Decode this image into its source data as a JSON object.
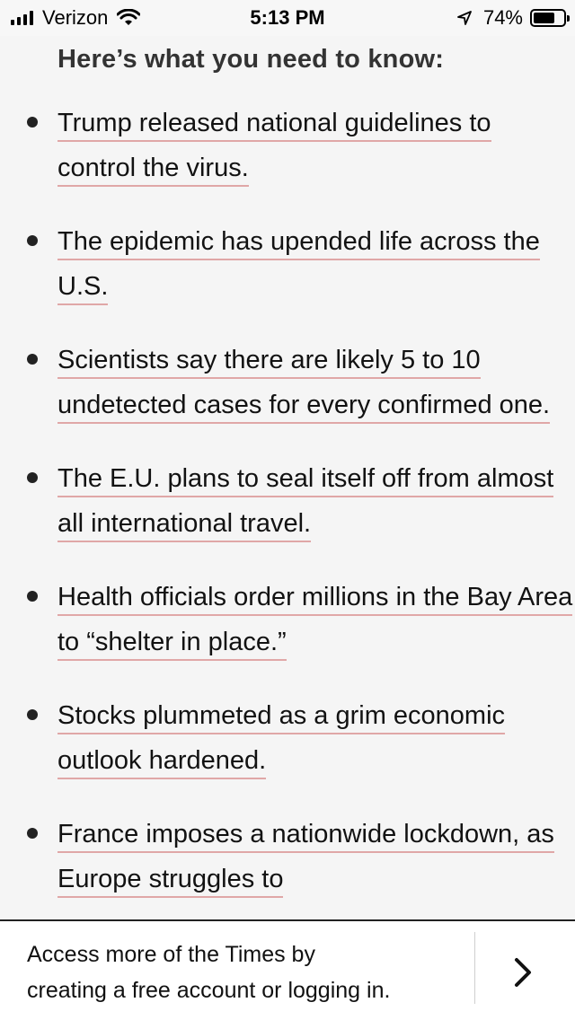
{
  "status_bar": {
    "carrier": "Verizon",
    "time": "5:13 PM",
    "battery": "74%",
    "battery_level": 0.74,
    "icons": [
      "signal-icon",
      "wifi-icon",
      "location-icon",
      "battery-icon"
    ]
  },
  "article": {
    "heading": "Here’s what you need to know:",
    "bullets": [
      {
        "text": "Trump released national guidelines to control the virus."
      },
      {
        "text": "The epidemic has upended life across the U.S."
      },
      {
        "text": "Scientists say there are likely 5 to 10 undetected cases for every confirmed one."
      },
      {
        "text": "The E.U. plans to seal itself off from almost all international travel."
      },
      {
        "text": "Health officials order millions in the Bay Area  to “shelter in place.”"
      },
      {
        "text": "Stocks plummeted as a grim economic outlook hardened."
      },
      {
        "text": "France imposes a nationwide lockdown, as Europe struggles to"
      }
    ],
    "link_underline_color": "#e0a7a7"
  },
  "banner": {
    "line1": "Access more of the Times by",
    "line2": "creating a free account or logging in.",
    "arrow_icon": "chevron-right-icon"
  }
}
